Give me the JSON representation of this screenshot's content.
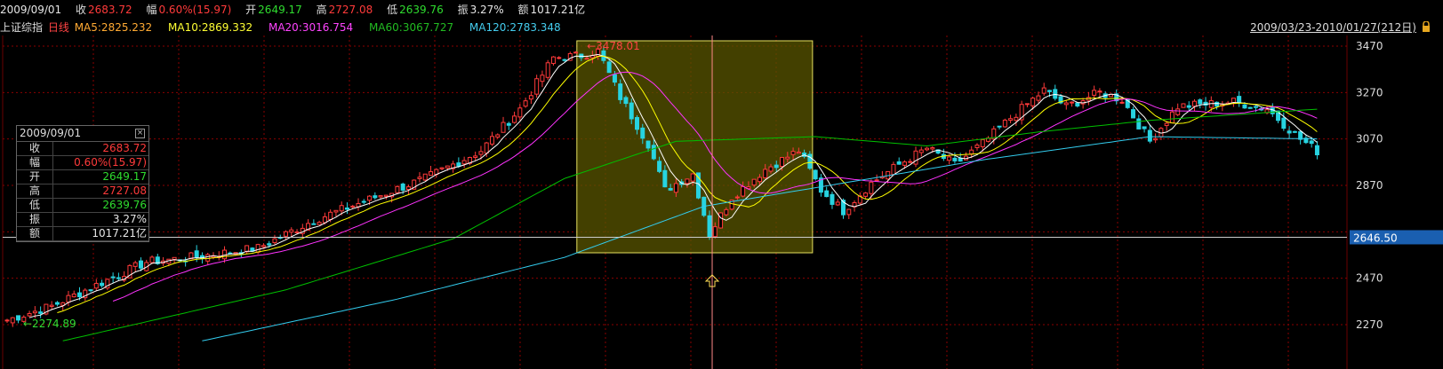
{
  "header": {
    "date": "2009/09/01",
    "close_label": "收",
    "close": "2683.72",
    "change_label": "幅",
    "change": "0.60%(15.97)",
    "open_label": "开",
    "open": "2649.17",
    "high_label": "高",
    "high": "2727.08",
    "low_label": "低",
    "low": "2639.76",
    "amp_label": "振",
    "amp": "3.27%",
    "amount_label": "额",
    "amount": "1017.21亿"
  },
  "subheader": {
    "index_name": "上证综指",
    "period": "日线",
    "ma5": "MA5:2825.232",
    "ma10": "MA10:2869.332",
    "ma20": "MA20:3016.754",
    "ma60": "MA60:3067.727",
    "ma120": "MA120:2783.348",
    "range": "2009/03/23-2010/01/27(212日)"
  },
  "infobox": {
    "date": "2009/09/01",
    "close_label": "收",
    "close": "2683.72",
    "change_label": "幅",
    "change": "0.60%(15.97)",
    "open_label": "开",
    "open": "2649.17",
    "high_label": "高",
    "high": "2727.08",
    "low_label": "低",
    "low": "2639.76",
    "amp_label": "振",
    "amp": "3.27%",
    "amount_label": "额",
    "amount": "1017.21亿"
  },
  "colors": {
    "up": "#ff3a3a",
    "down": "#27d3e0",
    "grid": "#8b0000",
    "ma5": "#ffffff",
    "ma10": "#ffff00",
    "ma20": "#ff33ff",
    "ma60": "#00c000",
    "ma120": "#33ccee",
    "selection": "#5a5500"
  },
  "chart_data": {
    "type": "candlestick",
    "title": "上证综指 日线",
    "y_ticks": [
      2270,
      2470,
      2670,
      2870,
      3070,
      3270,
      3470
    ],
    "y_tick_labels": [
      "2270",
      "2470",
      "",
      "2870",
      "3070",
      "3270",
      "3470"
    ],
    "ylim": [
      2200,
      3530
    ],
    "crosshair_value": "2646.50",
    "max_label": "3478.01",
    "min_label": "2274.89",
    "n_bars": 212,
    "selection_bars": [
      103,
      144
    ],
    "crosshair_bar": 126,
    "anchors": [
      [
        0,
        2290
      ],
      [
        8,
        2350
      ],
      [
        15,
        2430
      ],
      [
        25,
        2540
      ],
      [
        33,
        2560
      ],
      [
        45,
        2600
      ],
      [
        55,
        2720
      ],
      [
        65,
        2810
      ],
      [
        75,
        2900
      ],
      [
        85,
        3020
      ],
      [
        92,
        3200
      ],
      [
        98,
        3420
      ],
      [
        103,
        3430
      ],
      [
        106,
        3450
      ],
      [
        110,
        3250
      ],
      [
        115,
        3050
      ],
      [
        118,
        2850
      ],
      [
        123,
        2920
      ],
      [
        126,
        2660
      ],
      [
        130,
        2820
      ],
      [
        136,
        2940
      ],
      [
        142,
        3020
      ],
      [
        146,
        2850
      ],
      [
        150,
        2760
      ],
      [
        155,
        2880
      ],
      [
        160,
        2960
      ],
      [
        165,
        3030
      ],
      [
        170,
        2960
      ],
      [
        175,
        3050
      ],
      [
        180,
        3160
      ],
      [
        186,
        3280
      ],
      [
        190,
        3210
      ],
      [
        196,
        3270
      ],
      [
        200,
        3240
      ],
      [
        205,
        3060
      ],
      [
        210,
        3210
      ],
      [
        215,
        3220
      ],
      [
        220,
        3230
      ],
      [
        226,
        3200
      ],
      [
        232,
        3070
      ],
      [
        236,
        3000
      ]
    ],
    "ma_anchors": {
      "ma60": [
        [
          10,
          2200
        ],
        [
          50,
          2420
        ],
        [
          80,
          2640
        ],
        [
          100,
          2900
        ],
        [
          120,
          3060
        ],
        [
          145,
          3080
        ],
        [
          165,
          3040
        ],
        [
          185,
          3100
        ],
        [
          205,
          3150
        ],
        [
          236,
          3200
        ]
      ],
      "ma120": [
        [
          35,
          2200
        ],
        [
          70,
          2380
        ],
        [
          100,
          2560
        ],
        [
          125,
          2780
        ],
        [
          150,
          2880
        ],
        [
          175,
          2980
        ],
        [
          205,
          3080
        ],
        [
          236,
          3070
        ]
      ]
    }
  }
}
